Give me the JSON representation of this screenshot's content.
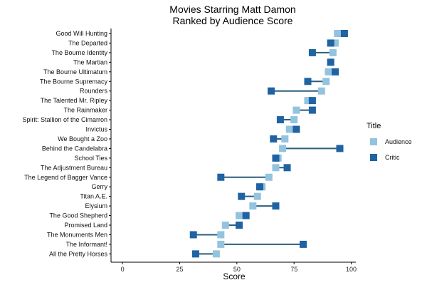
{
  "chart_data": {
    "type": "dumbbell",
    "title": "Movies Starring Matt Damon\nRanked by Audience Score",
    "xlabel": "Score",
    "ylabel": "",
    "xlim": [
      -5,
      102
    ],
    "xticks": [
      0,
      25,
      50,
      75,
      100
    ],
    "grid": false,
    "legend": {
      "title": "Title",
      "position": "right",
      "entries": [
        {
          "name": "Audience",
          "color": "#93c3df"
        },
        {
          "name": "Critic",
          "color": "#1f63a3"
        }
      ]
    },
    "connector_color": "#2b5e7e",
    "categories": [
      "Good Will Hunting",
      "The Departed",
      "The Bourne Identity",
      "The Martian",
      "The Bourne Ultimatum",
      "The Bourne Supremacy",
      "Rounders",
      "The Talented Mr. Ripley",
      "The Rainmaker",
      "Spirit: Stallion of the Cimarron",
      "Invictus",
      "We Bought a Zoo",
      "Behind the Candelabra",
      "School Ties",
      "The Adjustment Bureau",
      "The Legend of Bagger Vance",
      "Gerry",
      "Titan A.E.",
      "Elysium",
      "The Good Shepherd",
      "Promised Land",
      "The Monuments Men",
      "The Informant!",
      "All the Pretty Horses"
    ],
    "series": [
      {
        "name": "Audience",
        "values": [
          94,
          93,
          92,
          91,
          90,
          89,
          87,
          81,
          76,
          75,
          73,
          71,
          70,
          68,
          67,
          64,
          61,
          59,
          57,
          51,
          45,
          43,
          43,
          41
        ]
      },
      {
        "name": "Critic",
        "values": [
          97,
          91,
          83,
          91,
          93,
          81,
          65,
          83,
          83,
          69,
          76,
          66,
          95,
          67,
          72,
          43,
          60,
          52,
          67,
          54,
          51,
          31,
          79,
          32
        ]
      }
    ]
  }
}
